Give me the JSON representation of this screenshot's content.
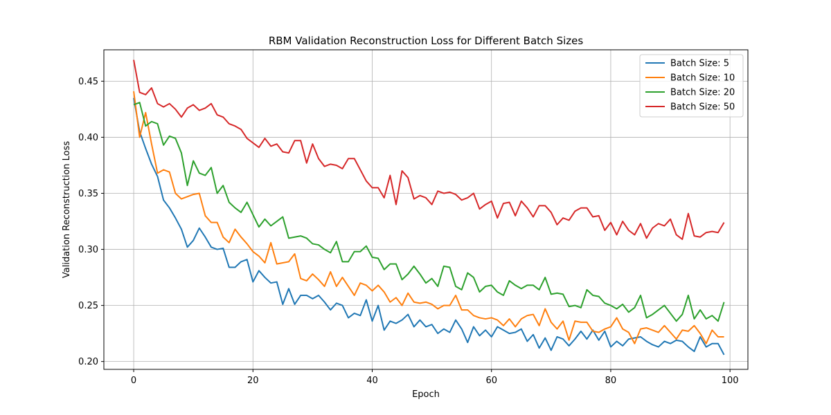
{
  "chart_data": {
    "type": "line",
    "title": "RBM Validation Reconstruction Loss for Different Batch Sizes",
    "xlabel": "Epoch",
    "ylabel": "Validation Reconstruction Loss",
    "xlim": [
      -5,
      103
    ],
    "ylim": [
      0.193,
      0.478
    ],
    "xticks": [
      0,
      20,
      40,
      60,
      80,
      100
    ],
    "yticks": [
      0.2,
      0.25,
      0.3,
      0.35,
      0.4,
      0.45
    ],
    "ytick_labels": [
      "0.20",
      "0.25",
      "0.30",
      "0.35",
      "0.40",
      "0.45"
    ],
    "grid": true,
    "legend_position": "top-right",
    "series": [
      {
        "name": "Batch Size: 5",
        "color": "#1f77b4",
        "values": [
          0.435,
          0.405,
          0.39,
          0.376,
          0.365,
          0.344,
          0.337,
          0.328,
          0.318,
          0.302,
          0.308,
          0.319,
          0.311,
          0.302,
          0.3,
          0.301,
          0.284,
          0.284,
          0.289,
          0.291,
          0.271,
          0.281,
          0.275,
          0.27,
          0.271,
          0.251,
          0.265,
          0.251,
          0.259,
          0.259,
          0.256,
          0.259,
          0.253,
          0.246,
          0.252,
          0.25,
          0.239,
          0.243,
          0.241,
          0.255,
          0.236,
          0.25,
          0.228,
          0.236,
          0.234,
          0.237,
          0.242,
          0.231,
          0.237,
          0.231,
          0.233,
          0.225,
          0.229,
          0.226,
          0.237,
          0.229,
          0.217,
          0.231,
          0.223,
          0.228,
          0.222,
          0.231,
          0.228,
          0.225,
          0.226,
          0.229,
          0.218,
          0.224,
          0.212,
          0.221,
          0.21,
          0.222,
          0.22,
          0.214,
          0.22,
          0.227,
          0.22,
          0.228,
          0.219,
          0.227,
          0.213,
          0.218,
          0.214,
          0.22,
          0.221,
          0.222,
          0.218,
          0.215,
          0.213,
          0.218,
          0.216,
          0.219,
          0.218,
          0.213,
          0.209,
          0.222,
          0.213,
          0.216,
          0.216,
          0.206
        ]
      },
      {
        "name": "Batch Size: 10",
        "color": "#ff7f0e",
        "values": [
          0.441,
          0.4,
          0.422,
          0.394,
          0.368,
          0.371,
          0.369,
          0.35,
          0.345,
          0.347,
          0.349,
          0.35,
          0.33,
          0.324,
          0.324,
          0.311,
          0.306,
          0.318,
          0.311,
          0.305,
          0.298,
          0.294,
          0.288,
          0.306,
          0.287,
          0.288,
          0.289,
          0.296,
          0.274,
          0.272,
          0.278,
          0.273,
          0.267,
          0.28,
          0.267,
          0.275,
          0.267,
          0.259,
          0.27,
          0.268,
          0.263,
          0.268,
          0.262,
          0.253,
          0.257,
          0.25,
          0.261,
          0.253,
          0.252,
          0.253,
          0.251,
          0.247,
          0.25,
          0.25,
          0.259,
          0.246,
          0.246,
          0.241,
          0.239,
          0.238,
          0.239,
          0.237,
          0.232,
          0.238,
          0.231,
          0.238,
          0.241,
          0.242,
          0.232,
          0.247,
          0.235,
          0.229,
          0.236,
          0.219,
          0.236,
          0.235,
          0.235,
          0.227,
          0.226,
          0.229,
          0.231,
          0.239,
          0.229,
          0.226,
          0.216,
          0.229,
          0.23,
          0.228,
          0.226,
          0.232,
          0.226,
          0.22,
          0.228,
          0.227,
          0.232,
          0.225,
          0.216,
          0.228,
          0.222,
          0.222
        ]
      },
      {
        "name": "Batch Size: 20",
        "color": "#2ca02c",
        "values": [
          0.429,
          0.431,
          0.41,
          0.414,
          0.412,
          0.393,
          0.401,
          0.399,
          0.386,
          0.357,
          0.379,
          0.368,
          0.366,
          0.373,
          0.35,
          0.357,
          0.342,
          0.337,
          0.333,
          0.342,
          0.331,
          0.32,
          0.327,
          0.321,
          0.325,
          0.329,
          0.31,
          0.311,
          0.312,
          0.31,
          0.305,
          0.304,
          0.3,
          0.297,
          0.307,
          0.289,
          0.289,
          0.298,
          0.298,
          0.303,
          0.293,
          0.292,
          0.282,
          0.287,
          0.287,
          0.273,
          0.278,
          0.285,
          0.278,
          0.27,
          0.274,
          0.267,
          0.285,
          0.284,
          0.267,
          0.264,
          0.279,
          0.275,
          0.262,
          0.267,
          0.268,
          0.262,
          0.259,
          0.272,
          0.268,
          0.265,
          0.268,
          0.268,
          0.264,
          0.275,
          0.26,
          0.261,
          0.26,
          0.249,
          0.25,
          0.248,
          0.264,
          0.259,
          0.258,
          0.252,
          0.25,
          0.247,
          0.251,
          0.244,
          0.248,
          0.259,
          0.239,
          0.242,
          0.246,
          0.25,
          0.243,
          0.236,
          0.242,
          0.259,
          0.238,
          0.246,
          0.238,
          0.241,
          0.236,
          0.253
        ]
      },
      {
        "name": "Batch Size: 50",
        "color": "#d62728",
        "values": [
          0.469,
          0.44,
          0.438,
          0.444,
          0.43,
          0.427,
          0.43,
          0.425,
          0.418,
          0.426,
          0.429,
          0.424,
          0.426,
          0.43,
          0.42,
          0.418,
          0.412,
          0.41,
          0.407,
          0.399,
          0.395,
          0.391,
          0.399,
          0.392,
          0.394,
          0.387,
          0.386,
          0.397,
          0.397,
          0.377,
          0.394,
          0.381,
          0.374,
          0.376,
          0.375,
          0.372,
          0.381,
          0.381,
          0.371,
          0.361,
          0.355,
          0.355,
          0.346,
          0.366,
          0.34,
          0.37,
          0.364,
          0.345,
          0.348,
          0.346,
          0.34,
          0.352,
          0.35,
          0.351,
          0.349,
          0.344,
          0.346,
          0.35,
          0.336,
          0.34,
          0.343,
          0.328,
          0.341,
          0.342,
          0.33,
          0.343,
          0.337,
          0.329,
          0.339,
          0.339,
          0.333,
          0.322,
          0.328,
          0.326,
          0.334,
          0.337,
          0.337,
          0.329,
          0.33,
          0.317,
          0.324,
          0.313,
          0.325,
          0.317,
          0.313,
          0.323,
          0.31,
          0.319,
          0.323,
          0.321,
          0.327,
          0.313,
          0.309,
          0.332,
          0.312,
          0.311,
          0.315,
          0.316,
          0.315,
          0.324
        ]
      }
    ]
  }
}
